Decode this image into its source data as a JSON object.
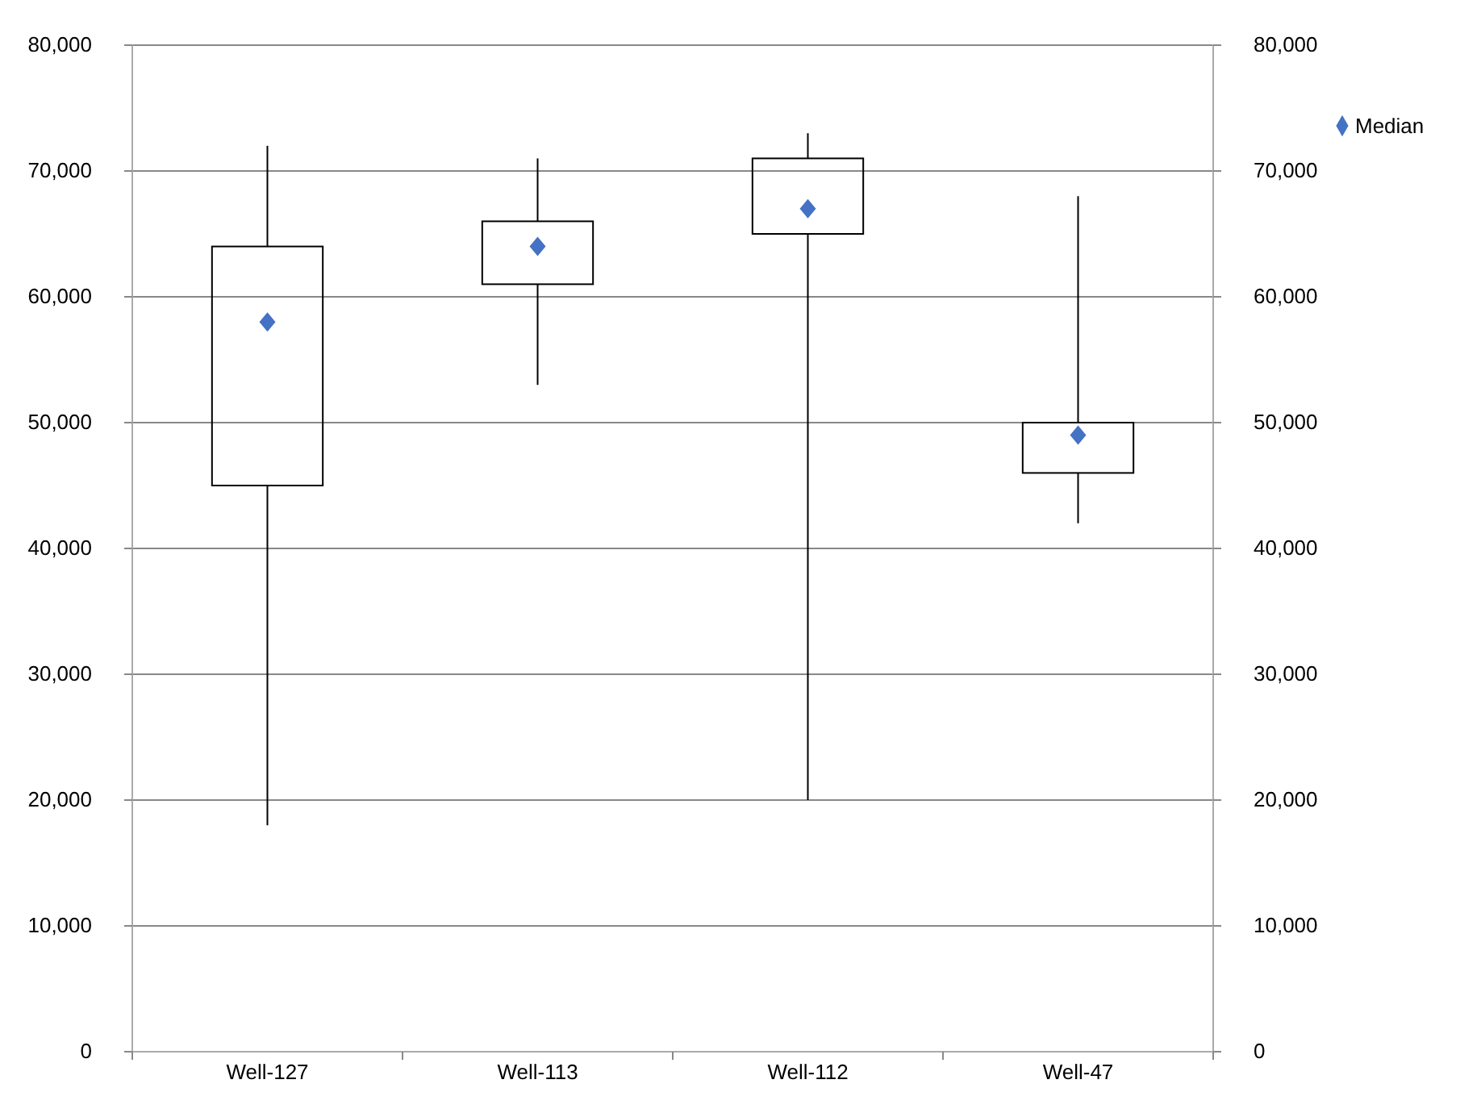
{
  "chart_data": {
    "type": "box",
    "categories": [
      "Well-127",
      "Well-113",
      "Well-112",
      "Well-47"
    ],
    "series": [
      {
        "type": "scatter",
        "name": "Median",
        "color": "#4472c4",
        "x": [
          "Well-127",
          "Well-113",
          "Well-112",
          "Well-47"
        ],
        "values": [
          58000,
          64000,
          67000,
          49000
        ]
      },
      {
        "color": "#000000",
        "boxes": [
          {
            "low": 18000,
            "q1": 45000,
            "q3": 64000,
            "high": 72000
          },
          {
            "low": 53000,
            "q1": 61000,
            "q3": 66000,
            "high": 71000
          },
          {
            "low": 20000,
            "q1": 65000,
            "q3": 71000,
            "high": 73000
          },
          {
            "low": 42000,
            "q1": 46000,
            "q3": 50000,
            "high": 68000
          }
        ]
      }
    ],
    "ylim": [
      0,
      80000
    ],
    "yticks": [
      {
        "value": 0,
        "label": "0"
      },
      {
        "value": 10000,
        "label": "10,000"
      },
      {
        "value": 20000,
        "label": "20,000"
      },
      {
        "value": 30000,
        "label": "30,000"
      },
      {
        "value": 40000,
        "label": "40,000"
      },
      {
        "value": 50000,
        "label": "50,000"
      },
      {
        "value": 60000,
        "label": "60,000"
      },
      {
        "value": 70000,
        "label": "70,000"
      },
      {
        "value": 80000,
        "label": "80,000"
      }
    ],
    "y2lim": [
      0,
      80000
    ],
    "y2ticks": [
      {
        "value": 0,
        "label": "0"
      },
      {
        "value": 10000,
        "label": "10,000"
      },
      {
        "value": 20000,
        "label": "20,000"
      },
      {
        "value": 30000,
        "label": "30,000"
      },
      {
        "value": 40000,
        "label": "40,000"
      },
      {
        "value": 50000,
        "label": "50,000"
      },
      {
        "value": 60000,
        "label": "60,000"
      },
      {
        "value": 70000,
        "label": "70,000"
      },
      {
        "value": 80000,
        "label": "80,000"
      }
    ],
    "grid": "y",
    "legend": "right",
    "marker": "diamond"
  }
}
